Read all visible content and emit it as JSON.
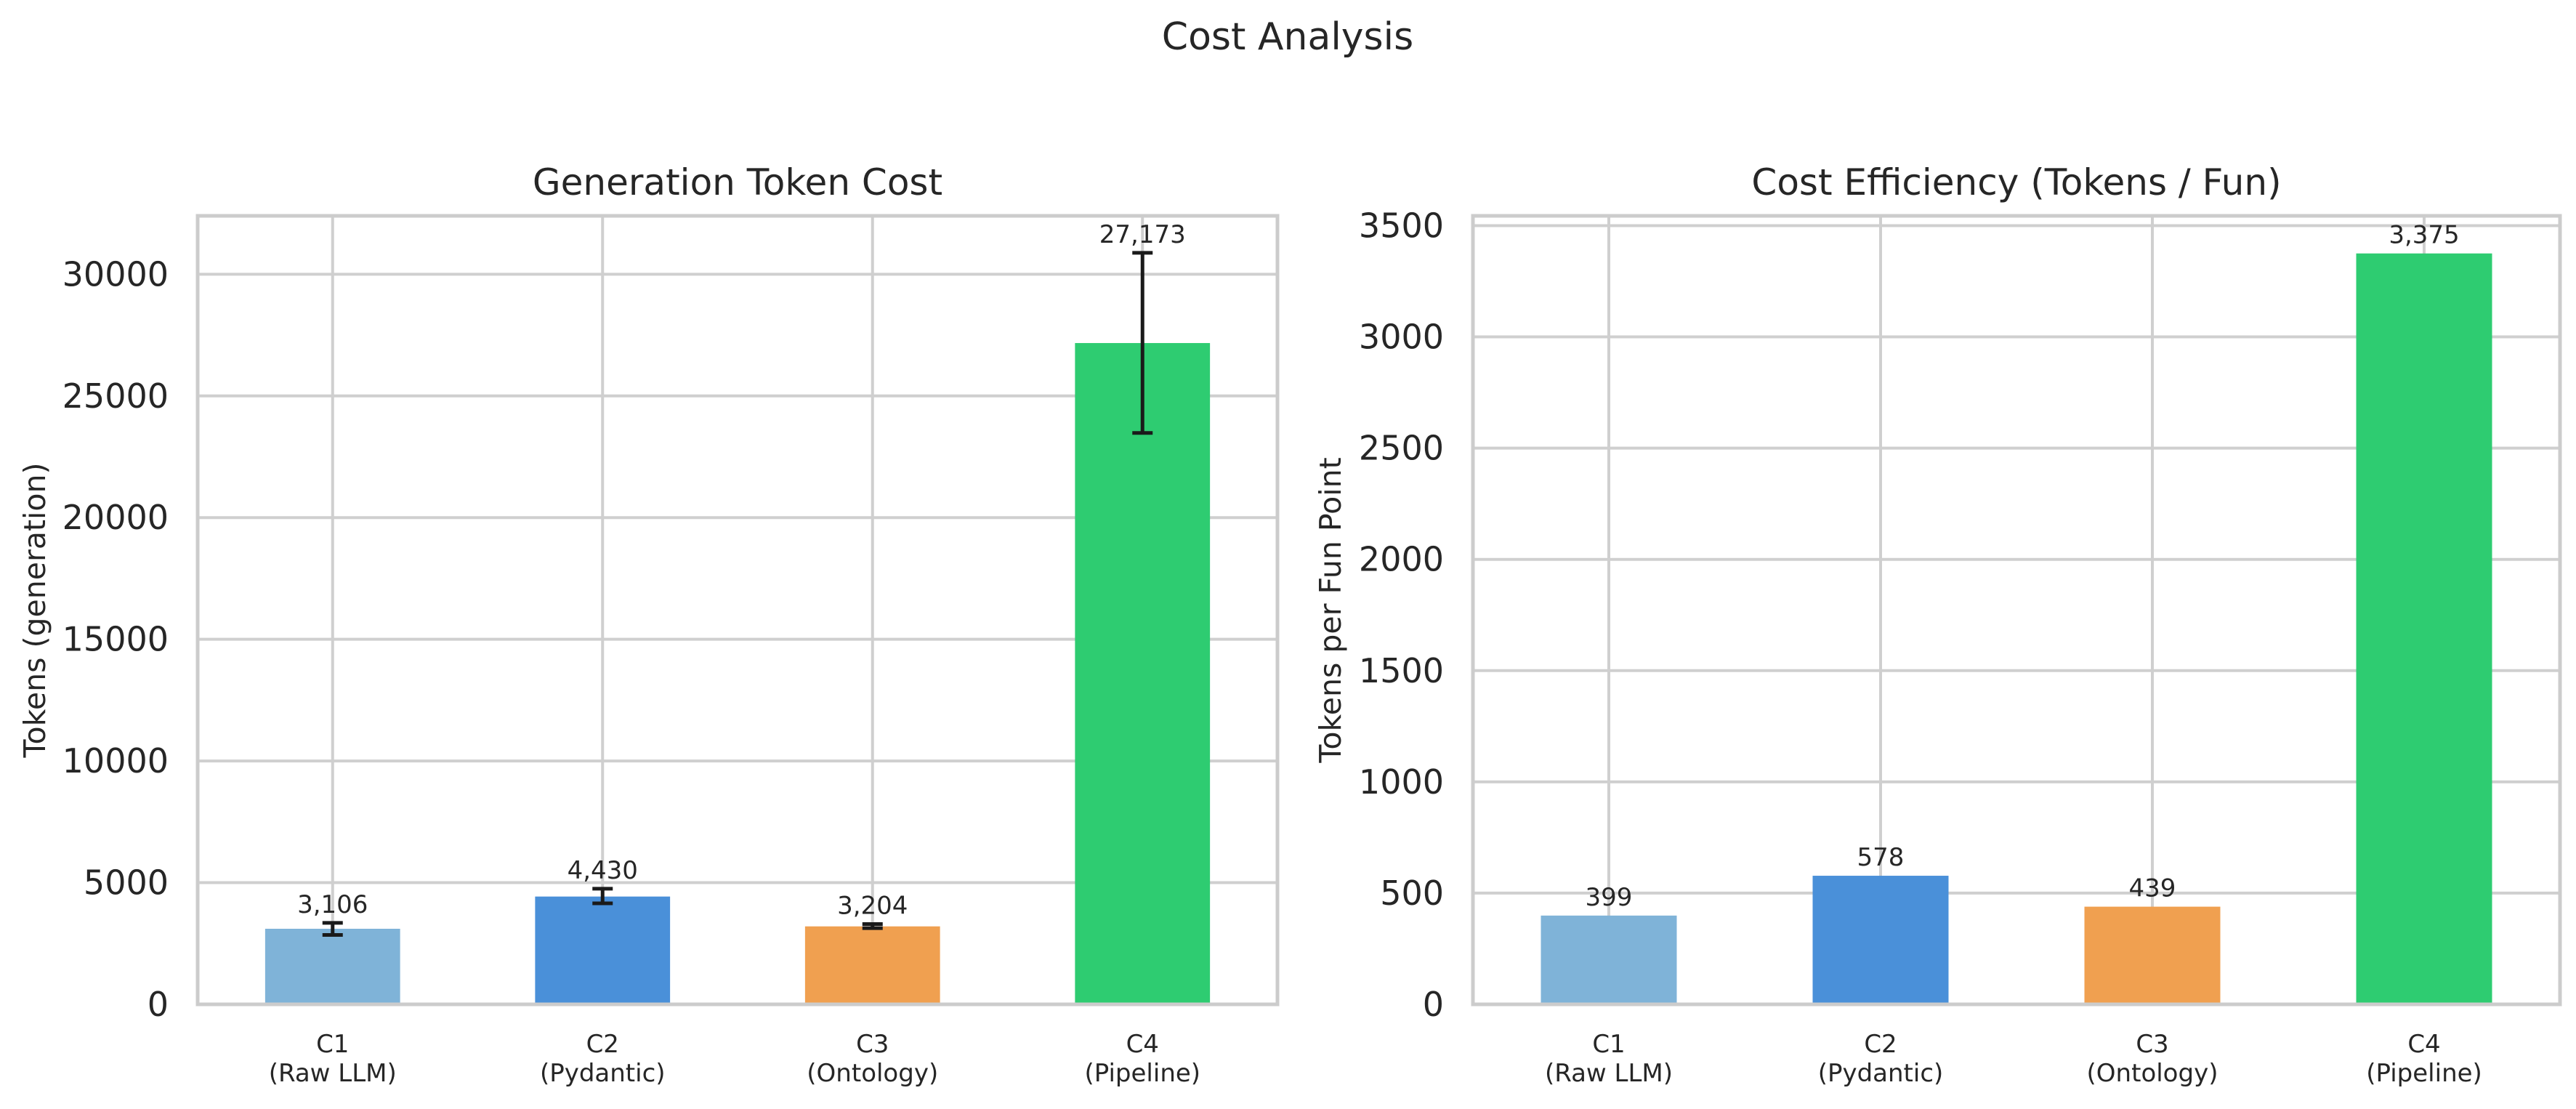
{
  "figure": {
    "title": "Cost Analysis"
  },
  "chart_data": [
    {
      "type": "bar",
      "title": "Generation Token Cost",
      "xlabel": "",
      "ylabel": "Tokens (generation)",
      "categories": [
        "C1\n(Raw LLM)",
        "C2\n(Pydantic)",
        "C3\n(Ontology)",
        "C4\n(Pipeline)"
      ],
      "values": [
        3106,
        4430,
        3204,
        27173
      ],
      "value_labels": [
        "3,106",
        "4,430",
        "3,204",
        "27,173"
      ],
      "error_bars": [
        {
          "low": 2850,
          "high": 3350
        },
        {
          "low": 4150,
          "high": 4750
        },
        {
          "low": 3130,
          "high": 3300
        },
        {
          "low": 23480,
          "high": 30880
        }
      ],
      "colors": [
        "#7fb3d8",
        "#4a90d9",
        "#f0a050",
        "#2ecc71"
      ],
      "ylim": [
        0,
        32400
      ],
      "yticks": [
        0,
        5000,
        10000,
        15000,
        20000,
        25000,
        30000
      ],
      "grid": true
    },
    {
      "type": "bar",
      "title": "Cost Efficiency (Tokens / Fun)",
      "xlabel": "",
      "ylabel": "Tokens per Fun Point",
      "categories": [
        "C1\n(Raw LLM)",
        "C2\n(Pydantic)",
        "C3\n(Ontology)",
        "C4\n(Pipeline)"
      ],
      "values": [
        399,
        578,
        439,
        3375
      ],
      "value_labels": [
        "399",
        "578",
        "439",
        "3,375"
      ],
      "colors": [
        "#7fb3d8",
        "#4a90d9",
        "#f0a050",
        "#2ecc71"
      ],
      "ylim": [
        0,
        3544
      ],
      "yticks": [
        0,
        500,
        1000,
        1500,
        2000,
        2500,
        3000,
        3500
      ],
      "grid": true
    }
  ]
}
